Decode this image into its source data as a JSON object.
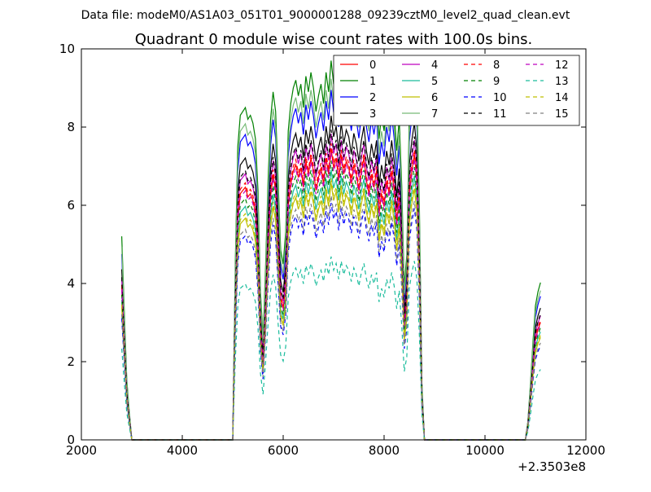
{
  "chart_data": {
    "type": "line",
    "suptitle": "Data file: modeM0/AS1A03_051T01_9000001288_09239cztM0_level2_quad_clean.evt",
    "title": "Quadrant 0 module wise count rates with 100.0s bins.",
    "xlabel": "",
    "ylabel": "",
    "x_offset_label": "+2.3503e8",
    "xlim": [
      2000,
      12000
    ],
    "ylim": [
      0,
      10
    ],
    "xticks": [
      2000,
      4000,
      6000,
      8000,
      10000,
      12000
    ],
    "yticks": [
      0,
      2,
      4,
      6,
      8,
      10
    ],
    "grid": false,
    "legend_position": "top-right",
    "legend_columns": 4,
    "x": [
      2800,
      2850,
      2900,
      2950,
      3000,
      3100,
      3200,
      3300,
      3400,
      3500,
      3600,
      3700,
      3800,
      3900,
      4000,
      4100,
      4200,
      4300,
      4400,
      4500,
      4600,
      4700,
      4800,
      4900,
      5000,
      5050,
      5100,
      5150,
      5200,
      5250,
      5300,
      5350,
      5400,
      5450,
      5500,
      5550,
      5600,
      5650,
      5700,
      5750,
      5800,
      5850,
      5900,
      5950,
      6000,
      6050,
      6100,
      6150,
      6200,
      6250,
      6300,
      6350,
      6400,
      6450,
      6500,
      6550,
      6600,
      6650,
      6700,
      6750,
      6800,
      6850,
      6900,
      6950,
      7000,
      7050,
      7100,
      7150,
      7200,
      7250,
      7300,
      7350,
      7400,
      7450,
      7500,
      7550,
      7600,
      7650,
      7700,
      7750,
      7800,
      7850,
      7900,
      7950,
      8000,
      8050,
      8100,
      8150,
      8200,
      8250,
      8300,
      8350,
      8400,
      8450,
      8500,
      8550,
      8600,
      8650,
      8700,
      8750,
      8800,
      8850,
      8900,
      9000,
      9100,
      9200,
      9300,
      9400,
      9500,
      9600,
      9700,
      9800,
      9900,
      10000,
      10100,
      10200,
      10300,
      10400,
      10500,
      10600,
      10700,
      10800,
      10850,
      10900,
      10950,
      11000,
      11050,
      11100
    ],
    "series": [
      {
        "name": "0",
        "color": "#ff0000",
        "style": "solid",
        "scale": 0.83,
        "offset": 0.32
      },
      {
        "name": "1",
        "color": "#008000",
        "style": "solid",
        "scale": 1.0,
        "offset": 1.1
      },
      {
        "name": "2",
        "color": "#0000ff",
        "style": "solid",
        "scale": 0.95,
        "offset": 0.78
      },
      {
        "name": "3",
        "color": "#000000",
        "style": "solid",
        "scale": 0.9,
        "offset": 0.55
      },
      {
        "name": "4",
        "color": "#bf00bf",
        "style": "solid",
        "scale": 0.86,
        "offset": 0.44
      },
      {
        "name": "5",
        "color": "#1abc9c",
        "style": "solid",
        "scale": 0.78,
        "offset": 0.2
      },
      {
        "name": "6",
        "color": "#bfbf00",
        "style": "solid",
        "scale": 0.75,
        "offset": 0.12
      },
      {
        "name": "7",
        "color": "#77bb77",
        "style": "solid",
        "scale": 0.96,
        "offset": 0.98
      },
      {
        "name": "8",
        "color": "#ff0000",
        "style": "dashed",
        "scale": 0.84,
        "offset": 0.36
      },
      {
        "name": "9",
        "color": "#008000",
        "style": "dashed",
        "scale": 0.8,
        "offset": 0.26
      },
      {
        "name": "10",
        "color": "#0000ff",
        "style": "dashed",
        "scale": 0.7,
        "offset": 0.04
      },
      {
        "name": "11",
        "color": "#000000",
        "style": "dashed",
        "scale": 0.87,
        "offset": 0.45
      },
      {
        "name": "12",
        "color": "#bf00bf",
        "style": "dashed",
        "scale": 0.82,
        "offset": 0.3
      },
      {
        "name": "13",
        "color": "#1abc9c",
        "style": "dashed",
        "scale": 0.58,
        "offset": -0.3
      },
      {
        "name": "14",
        "color": "#bfbf00",
        "style": "dashed",
        "scale": 0.76,
        "offset": 0.16
      },
      {
        "name": "15",
        "color": "#808080",
        "style": "dashed",
        "scale": 0.72,
        "offset": 0.06
      }
    ],
    "base_profile": [
      4.4,
      2.8,
      1.3,
      0.6,
      0.0,
      0,
      0,
      0,
      0,
      0,
      0,
      0,
      0,
      0,
      0,
      0,
      0,
      0,
      0,
      0,
      0,
      0,
      0,
      0,
      0,
      3.8,
      6.4,
      7.2,
      7.3,
      7.4,
      7.1,
      7.2,
      7.0,
      6.6,
      5.4,
      3.2,
      2.2,
      3.7,
      5.6,
      7.1,
      7.8,
      7.3,
      5.6,
      4.1,
      3.8,
      4.5,
      6.8,
      7.5,
      7.9,
      8.1,
      7.7,
      8.0,
      7.4,
      8.2,
      7.8,
      8.3,
      7.9,
      7.3,
      7.7,
      8.0,
      7.5,
      8.3,
      7.8,
      8.6,
      8.0,
      8.3,
      7.6,
      8.4,
      7.8,
      8.2,
      8.0,
      7.5,
      8.1,
      7.8,
      7.3,
      7.9,
      8.3,
      7.6,
      7.2,
      7.8,
      7.4,
      7.9,
      6.6,
      7.2,
      6.8,
      7.6,
      7.2,
      7.9,
      7.3,
      6.3,
      7.1,
      5.5,
      3.3,
      4.0,
      7.2,
      7.9,
      8.4,
      7.6,
      5.0,
      1.2,
      0.0,
      0,
      0,
      0,
      0,
      0,
      0,
      0,
      0,
      0,
      0,
      0,
      0,
      0,
      0,
      0,
      0,
      0,
      0,
      0,
      0,
      0.0,
      0.4,
      1.2,
      2.1,
      2.9,
      3.2,
      3.4
    ]
  }
}
